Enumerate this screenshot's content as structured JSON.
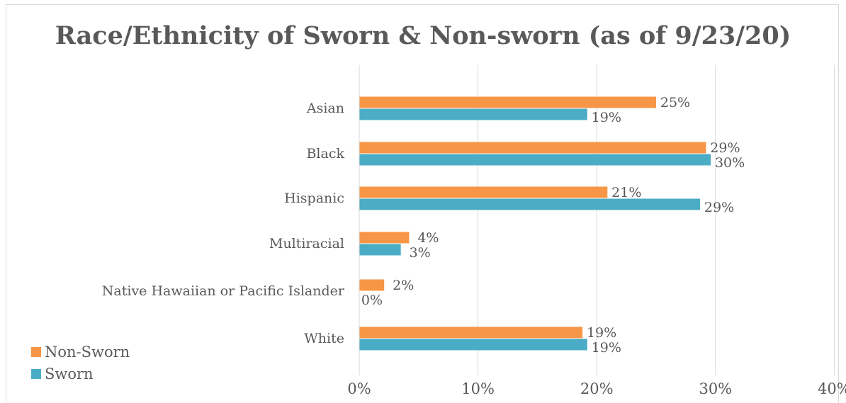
{
  "chart_data": {
    "type": "bar",
    "orientation": "horizontal",
    "title": "Race/Ethnicity of Sworn & Non-sworn (as of 9/23/20)",
    "categories": [
      "Asian",
      "Black",
      "Hispanic",
      "Multiracial",
      "Native Hawaiian or Pacific Islander",
      "White"
    ],
    "series": [
      {
        "name": "Non-Sworn",
        "color": "#F79646",
        "values": [
          25,
          29,
          21,
          4,
          2,
          19
        ],
        "labels": [
          "25%",
          "29%",
          "21%",
          "4%",
          "2%",
          "19%"
        ],
        "plotted": [
          25.0,
          29.2,
          20.9,
          4.2,
          2.1,
          18.8
        ]
      },
      {
        "name": "Sworn",
        "color": "#4BACC6",
        "values": [
          19,
          30,
          29,
          3,
          0,
          19
        ],
        "labels": [
          "19%",
          "30%",
          "29%",
          "3%",
          "0%",
          "19%"
        ],
        "plotted": [
          19.2,
          29.6,
          28.7,
          3.5,
          0.0,
          19.2
        ]
      }
    ],
    "xlim": [
      0,
      40
    ],
    "x_ticks": [
      "0%",
      "10%",
      "20%",
      "30%",
      "40%"
    ],
    "x_tick_values": [
      0,
      10,
      20,
      30,
      40
    ],
    "grid": true,
    "legend_position": "bottom-left"
  }
}
